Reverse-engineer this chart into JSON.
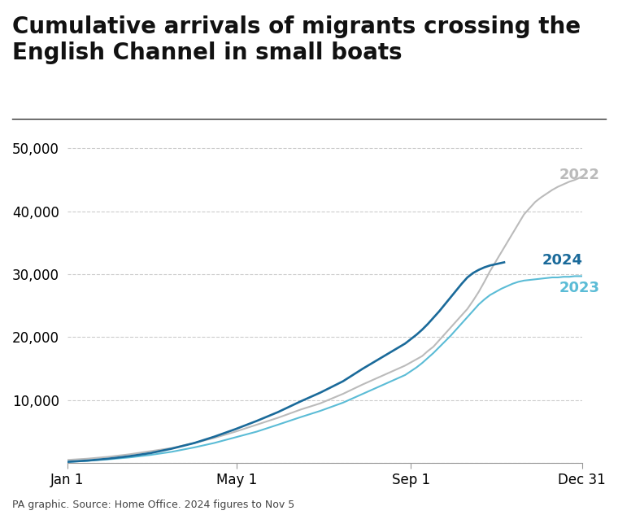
{
  "title": "Cumulative arrivals of migrants crossing the\nEnglish Channel in small boats",
  "title_fontsize": 20,
  "ylabel": "",
  "xlabel": "",
  "source_text": "PA graphic. Source: Home Office. 2024 figures to Nov 5",
  "ylim": [
    0,
    52000
  ],
  "yticks": [
    0,
    10000,
    20000,
    30000,
    40000,
    50000
  ],
  "ytick_labels": [
    "",
    "10,000",
    "20,000",
    "30,000",
    "40,000",
    "50,000"
  ],
  "xtick_labels": [
    "Jan 1",
    "May 1",
    "Sep 1",
    "Dec 31"
  ],
  "background_color": "#ffffff",
  "grid_color": "#cccccc",
  "color_2022": "#bbbbbb",
  "color_2023": "#5bbcd6",
  "color_2024": "#1a6a9a",
  "label_2022": "2022",
  "label_2023": "2023",
  "label_2024": "2024",
  "line_width": 1.5,
  "data_2022": {
    "day_of_year": [
      1,
      15,
      30,
      45,
      60,
      75,
      91,
      105,
      120,
      135,
      150,
      166,
      180,
      196,
      210,
      225,
      240,
      244,
      248,
      252,
      256,
      260,
      264,
      268,
      272,
      276,
      280,
      284,
      288,
      292,
      296,
      300,
      304,
      308,
      312,
      316,
      320,
      324,
      328,
      332,
      336,
      340,
      344,
      348,
      352,
      356,
      360,
      365
    ],
    "values": [
      500,
      700,
      1000,
      1400,
      1900,
      2400,
      3200,
      4000,
      5000,
      6100,
      7200,
      8500,
      9500,
      11000,
      12500,
      14000,
      15500,
      16000,
      16500,
      17000,
      17800,
      18500,
      19500,
      20500,
      21500,
      22500,
      23500,
      24500,
      25800,
      27200,
      28800,
      30500,
      32000,
      33500,
      35000,
      36500,
      38000,
      39500,
      40500,
      41500,
      42200,
      42800,
      43400,
      43900,
      44300,
      44700,
      45000,
      45500
    ]
  },
  "data_2023": {
    "day_of_year": [
      1,
      15,
      30,
      45,
      60,
      75,
      91,
      105,
      120,
      135,
      150,
      166,
      180,
      196,
      210,
      225,
      240,
      244,
      248,
      252,
      256,
      260,
      264,
      268,
      272,
      276,
      280,
      284,
      288,
      292,
      296,
      300,
      304,
      308,
      312,
      316,
      320,
      324,
      328,
      332,
      336,
      340,
      344,
      348,
      352,
      356,
      360,
      365
    ],
    "values": [
      200,
      350,
      600,
      900,
      1300,
      1800,
      2500,
      3200,
      4100,
      5000,
      6100,
      7300,
      8300,
      9600,
      11000,
      12500,
      14000,
      14600,
      15200,
      15900,
      16700,
      17500,
      18400,
      19300,
      20200,
      21200,
      22200,
      23200,
      24200,
      25200,
      26000,
      26700,
      27200,
      27700,
      28100,
      28500,
      28800,
      29000,
      29100,
      29200,
      29300,
      29400,
      29500,
      29500,
      29600,
      29600,
      29700,
      29700
    ]
  },
  "data_2024": {
    "day_of_year": [
      1,
      15,
      30,
      45,
      60,
      75,
      91,
      105,
      120,
      135,
      150,
      166,
      180,
      196,
      210,
      225,
      240,
      244,
      248,
      252,
      256,
      260,
      264,
      268,
      272,
      276,
      280,
      284,
      288,
      292,
      296,
      300,
      304,
      308,
      310
    ],
    "values": [
      200,
      400,
      700,
      1100,
      1600,
      2300,
      3200,
      4200,
      5400,
      6700,
      8100,
      9800,
      11200,
      13000,
      15000,
      17000,
      19000,
      19700,
      20400,
      21200,
      22100,
      23100,
      24100,
      25200,
      26300,
      27400,
      28500,
      29500,
      30200,
      30700,
      31100,
      31400,
      31600,
      31800,
      31900
    ]
  }
}
